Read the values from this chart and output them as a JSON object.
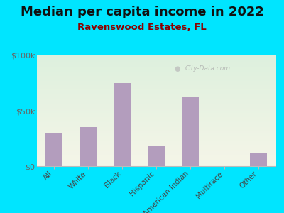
{
  "title": "Median per capita income in 2022",
  "subtitle": "Ravenswood Estates, FL",
  "categories": [
    "All",
    "White",
    "Black",
    "Hispanic",
    "American Indian",
    "Multirace",
    "Other"
  ],
  "values": [
    30000,
    35000,
    75000,
    18000,
    62000,
    0,
    12000
  ],
  "bar_color": "#b39dbd",
  "background_outer": "#00e5ff",
  "background_inner_top": "#ddf0dd",
  "background_inner_bottom": "#f8f8e8",
  "ylim": [
    0,
    100000
  ],
  "ytick_labels": [
    "$0",
    "$50k",
    "$100k"
  ],
  "title_fontsize": 13,
  "subtitle_fontsize": 9.5,
  "watermark": "City-Data.com",
  "subtitle_color": "#8B0000"
}
